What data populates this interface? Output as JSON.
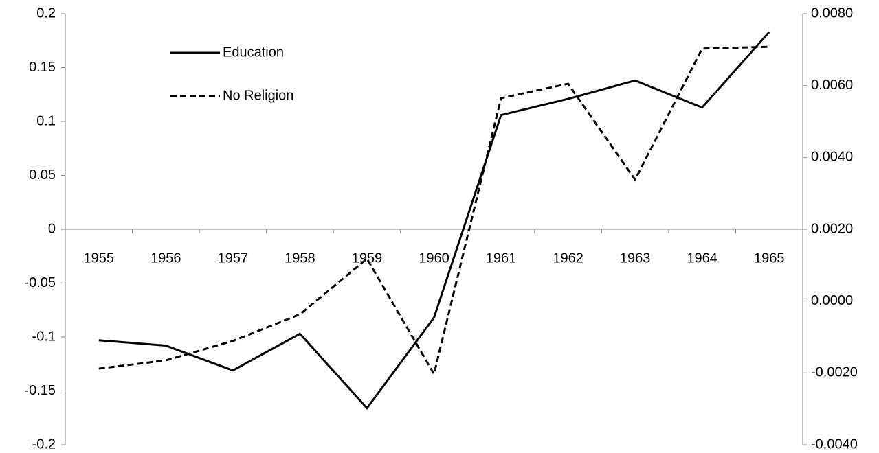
{
  "chart_data": {
    "type": "line",
    "categories": [
      "1955",
      "1956",
      "1957",
      "1958",
      "1959",
      "1960",
      "1961",
      "1962",
      "1963",
      "1964",
      "1965"
    ],
    "series": [
      {
        "name": "Education",
        "color": "#000000",
        "style": "solid",
        "axis": "y",
        "values": [
          -0.103,
          -0.108,
          -0.131,
          -0.097,
          -0.166,
          -0.082,
          0.106,
          0.121,
          0.138,
          0.113,
          0.183
        ]
      },
      {
        "name": "No Religion",
        "color": "#000000",
        "style": "dashed",
        "axis": "y2",
        "values": [
          -0.00188,
          -0.00165,
          -0.00111,
          -0.00037,
          0.00118,
          -0.00203,
          0.00565,
          0.00605,
          0.00338,
          0.00703,
          0.00708
        ]
      }
    ],
    "ylim": [
      -0.2,
      0.2
    ],
    "yticks": [
      -0.2,
      -0.15,
      -0.1,
      -0.05,
      0,
      0.05,
      0.1,
      0.15,
      0.2
    ],
    "y2lim": [
      -0.004,
      0.008
    ],
    "y2ticks": [
      {
        "value": -0.004,
        "label": "-0.0040"
      },
      {
        "value": -0.002,
        "label": "-0.0020"
      },
      {
        "value": 0,
        "label": "0.0000"
      },
      {
        "value": 0.002,
        "label": "0.0020"
      },
      {
        "value": 0.004,
        "label": "0.0040"
      },
      {
        "value": 0.006,
        "label": "0.0060"
      },
      {
        "value": 0.008,
        "label": "0.0080"
      }
    ]
  }
}
